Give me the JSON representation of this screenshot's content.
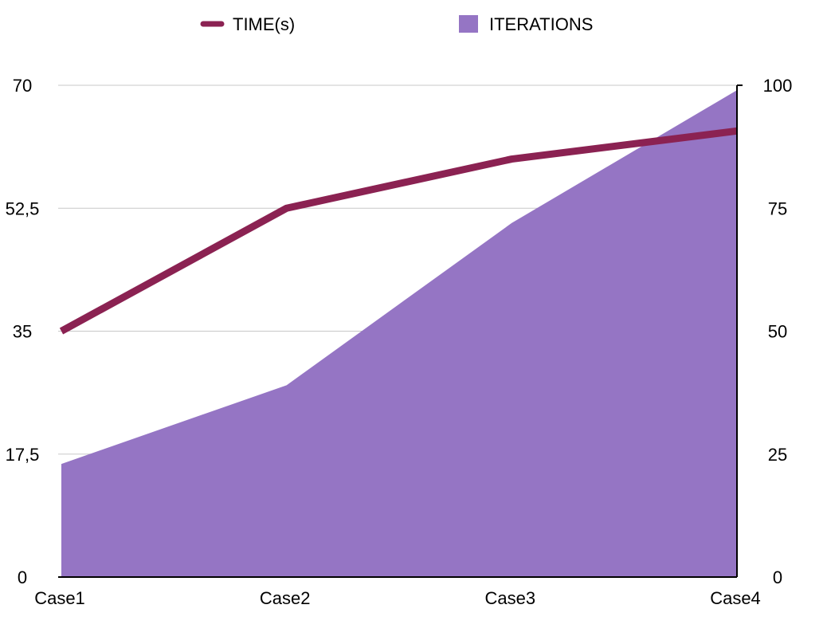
{
  "chart_data": {
    "type": "line+area",
    "categories": [
      "Case1",
      "Case2",
      "Case3",
      "Case4"
    ],
    "series": [
      {
        "name": "TIME(s)",
        "kind": "line",
        "axis": "left",
        "color": "#8B2252",
        "values": [
          35,
          52.5,
          59.5,
          63.5
        ]
      },
      {
        "name": "ITERATIONS",
        "kind": "area",
        "axis": "right",
        "color": "#9575C4",
        "values": [
          23,
          39,
          72,
          99
        ]
      }
    ],
    "y_left": {
      "ylim": [
        0,
        70
      ],
      "ticks": [
        0,
        17.5,
        35,
        52.5,
        70
      ],
      "tick_labels": [
        "0",
        "17,5",
        "35",
        "52,5",
        "70"
      ]
    },
    "y_right": {
      "ylim": [
        0,
        100
      ],
      "ticks": [
        0,
        25,
        50,
        75,
        100
      ],
      "tick_labels": [
        "0",
        "25",
        "50",
        "75",
        "100"
      ]
    },
    "grid": true,
    "legend_position": "top-center",
    "title": "",
    "xlabel": "",
    "ylabel": ""
  }
}
